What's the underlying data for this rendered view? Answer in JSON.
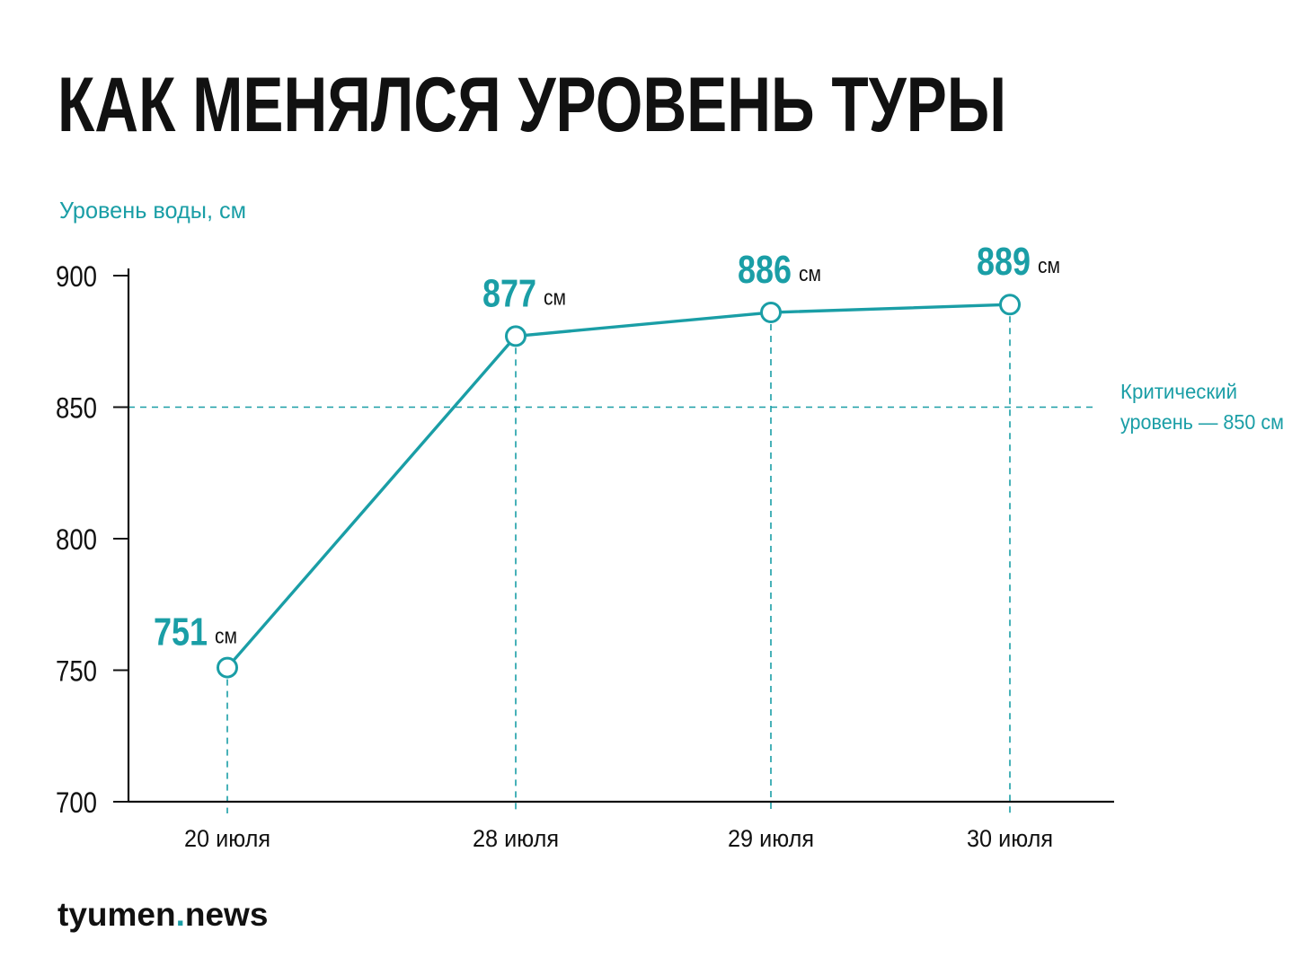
{
  "colors": {
    "accent": "#1a9ea6",
    "axis": "#111111",
    "title": "#111111",
    "background": "#ffffff"
  },
  "brand": {
    "name": "tyumen",
    "dot": ".",
    "suffix": "news"
  },
  "chart_data": {
    "type": "line",
    "title": "КАК МЕНЯЛСЯ УРОВЕНЬ ТУРЫ",
    "ylabel": "Уровень воды, см",
    "xlabel": "",
    "ylim": [
      700,
      900
    ],
    "yticks": [
      700,
      750,
      800,
      850,
      900
    ],
    "grid": false,
    "categories": [
      "20 июля",
      "28 июля",
      "29 июля",
      "30 июля"
    ],
    "series": [
      {
        "values": [
          751,
          877,
          886,
          889
        ]
      }
    ],
    "data_labels": [
      "751",
      "877",
      "886",
      "889"
    ],
    "unit": "см",
    "reference_line": {
      "value": 850,
      "label_line1": "Критический",
      "label_line2": "уровень — 850 см"
    }
  }
}
